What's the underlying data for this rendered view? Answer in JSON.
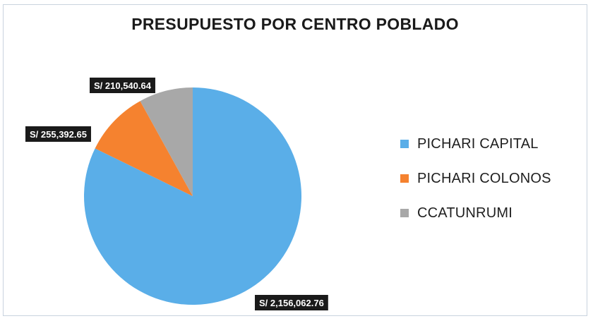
{
  "chart_data": {
    "type": "pie",
    "title": "PRESUPUESTO POR CENTRO POBLADO",
    "categories": [
      "PICHARI CAPITAL",
      "PICHARI COLONOS",
      "CCATUNRUMI"
    ],
    "values": [
      2156062.76,
      255392.65,
      210540.64
    ],
    "data_labels": [
      "S/ 2,156,062.76",
      "S/ 255,392.65",
      "S/ 210,540.64"
    ],
    "colors": [
      "#5aaee8",
      "#f5822f",
      "#a8a8a8"
    ],
    "legend_position": "right",
    "start_angle": "top",
    "direction": "clockwise"
  }
}
